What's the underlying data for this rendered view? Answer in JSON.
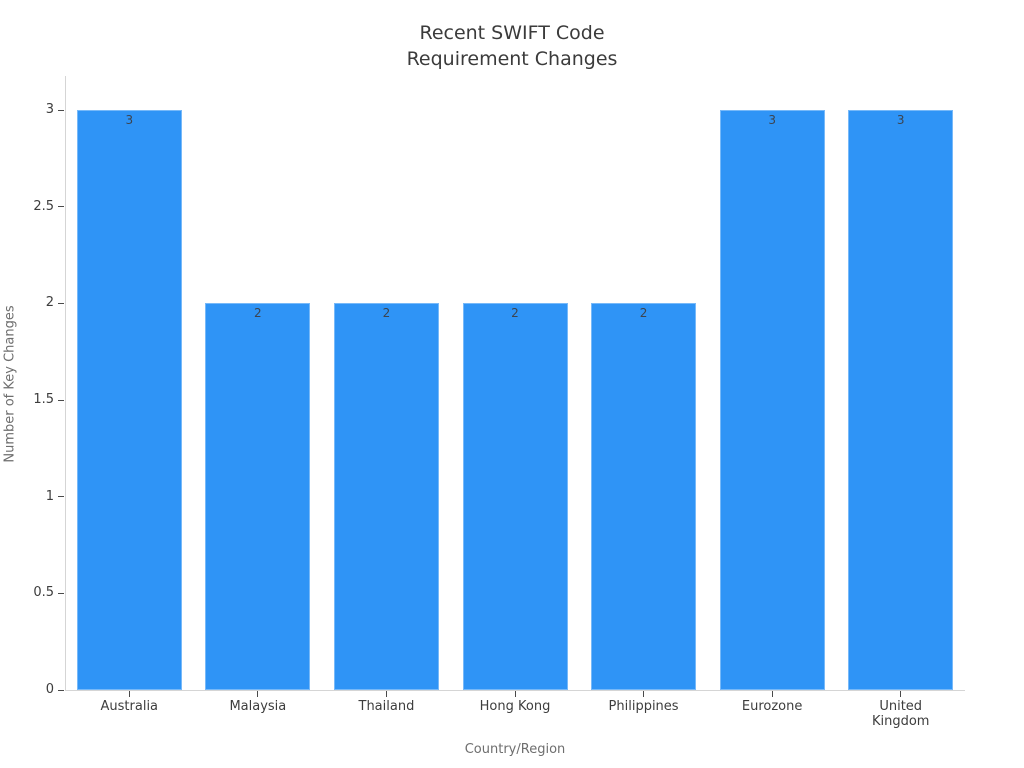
{
  "chart_data": {
    "type": "bar",
    "title": "Recent SWIFT Code\nRequirement Changes",
    "xlabel": "Country/Region",
    "ylabel": "Number of Key Changes",
    "categories": [
      "Australia",
      "Malaysia",
      "Thailand",
      "Hong Kong",
      "Philippines",
      "Eurozone",
      "United Kingdom"
    ],
    "values": [
      3,
      2,
      2,
      2,
      2,
      3,
      3
    ],
    "bar_value_labels": [
      "3",
      "2",
      "2",
      "2",
      "2",
      "3",
      "3"
    ],
    "ylim": [
      0,
      3
    ],
    "yticks": [
      0,
      0.5,
      1,
      1.5,
      2,
      2.5,
      3
    ],
    "grid": false,
    "legend": "none"
  },
  "colors": {
    "background": "#FFFFFF",
    "bar_fill": "#2F94F6",
    "title_text": "#3B3B3B",
    "tick_text": "#3D3D3D",
    "tick_mark": "#4A4A4A",
    "axis_line": "#D5D5D5",
    "axis_title_text": "#6E6E6E",
    "bar_label_text": "#3C4450"
  }
}
